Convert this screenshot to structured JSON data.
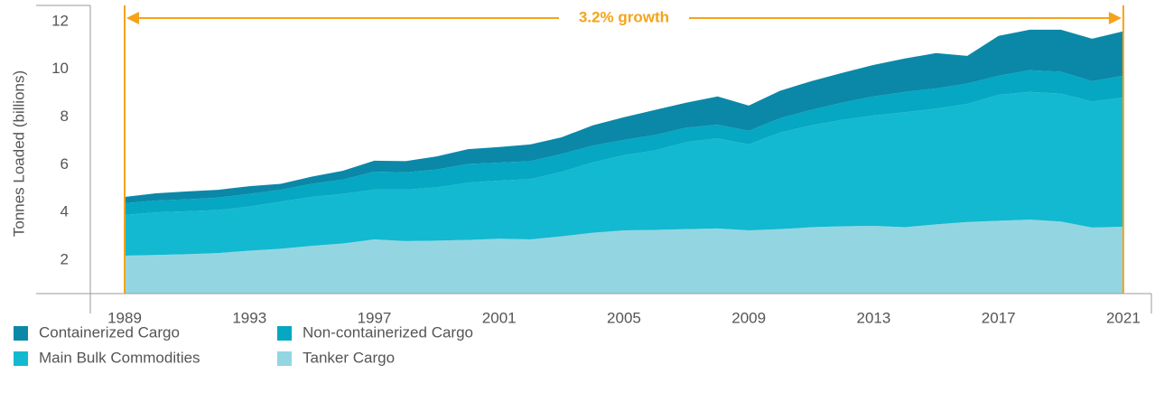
{
  "chart_data": {
    "type": "stacked_area",
    "y_label": "Tonnes Loaded (billions)",
    "annotation": "3.2% growth",
    "annotation_color": "#f5a31a",
    "x": [
      1989,
      1990,
      1991,
      1992,
      1993,
      1994,
      1995,
      1996,
      1997,
      1998,
      1999,
      2000,
      2001,
      2002,
      2003,
      2004,
      2005,
      2006,
      2007,
      2008,
      2009,
      2010,
      2011,
      2012,
      2013,
      2014,
      2015,
      2016,
      2017,
      2018,
      2019,
      2020,
      2021
    ],
    "xlim": [
      1987.9,
      2021.9
    ],
    "xticks": [
      1989,
      1993,
      1997,
      2001,
      2005,
      2009,
      2013,
      2017,
      2021
    ],
    "ylim": [
      0.6,
      12.6
    ],
    "yticks": [
      2,
      4,
      6,
      8,
      10,
      12
    ],
    "series": [
      {
        "name": "Containerized Cargo",
        "color": "#0b88a8",
        "values": [
          0.26,
          0.3,
          0.33,
          0.33,
          0.32,
          0.25,
          0.3,
          0.37,
          0.46,
          0.47,
          0.55,
          0.62,
          0.65,
          0.7,
          0.7,
          0.85,
          0.95,
          1.05,
          1.05,
          1.18,
          1.06,
          1.15,
          1.2,
          1.25,
          1.32,
          1.4,
          1.48,
          1.16,
          1.67,
          1.7,
          1.76,
          1.78,
          1.86
        ]
      },
      {
        "name": "Non-containerized Cargo",
        "color": "#05a7c2",
        "values": [
          0.49,
          0.5,
          0.5,
          0.52,
          0.53,
          0.5,
          0.55,
          0.6,
          0.75,
          0.72,
          0.75,
          0.78,
          0.76,
          0.75,
          0.75,
          0.7,
          0.64,
          0.65,
          0.6,
          0.58,
          0.57,
          0.6,
          0.65,
          0.72,
          0.8,
          0.85,
          0.85,
          0.85,
          0.8,
          0.91,
          0.92,
          0.85,
          0.91
        ]
      },
      {
        "name": "Main Bulk Commodities",
        "color": "#12b9d0",
        "values": [
          1.71,
          1.78,
          1.8,
          1.8,
          1.85,
          1.97,
          2.05,
          2.08,
          2.09,
          2.16,
          2.23,
          2.4,
          2.43,
          2.53,
          2.7,
          2.95,
          3.15,
          3.33,
          3.65,
          3.77,
          3.6,
          4.05,
          4.27,
          4.46,
          4.62,
          4.82,
          4.85,
          4.95,
          5.28,
          5.35,
          5.36,
          5.28,
          5.42
        ]
      },
      {
        "name": "Tanker Cargo",
        "color": "#93d6e2",
        "values": [
          2.19,
          2.22,
          2.25,
          2.3,
          2.4,
          2.48,
          2.6,
          2.7,
          2.87,
          2.8,
          2.82,
          2.85,
          2.9,
          2.87,
          3.0,
          3.15,
          3.25,
          3.27,
          3.3,
          3.33,
          3.25,
          3.3,
          3.38,
          3.42,
          3.44,
          3.38,
          3.5,
          3.6,
          3.65,
          3.7,
          3.62,
          3.37,
          3.4
        ]
      }
    ]
  }
}
